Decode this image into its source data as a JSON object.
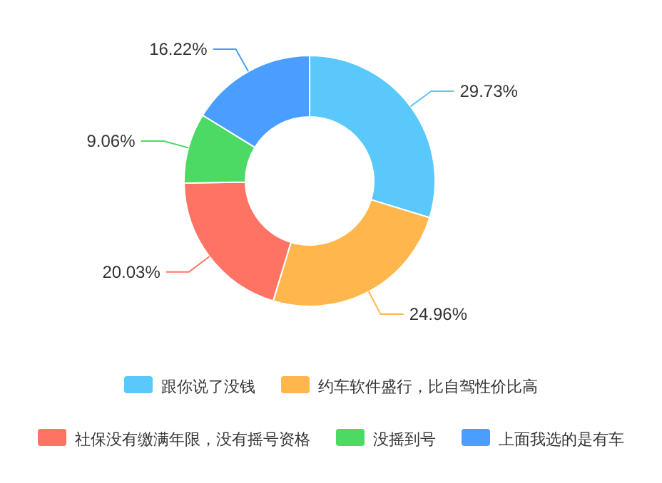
{
  "chart_data": {
    "type": "donut",
    "categories": [
      "跟你说了没钱",
      "约车软件盛行，比自驾性价比高",
      "社保没有缴满年限，没有摇号资格",
      "没摇到号",
      "上面我选的是有车"
    ],
    "values": [
      29.73,
      24.96,
      20.03,
      9.06,
      16.22
    ],
    "colors": [
      "#5ac8fa",
      "#ffb64d",
      "#ff7365",
      "#4cd964",
      "#4a9eff"
    ],
    "value_labels": [
      "29.73%",
      "24.96%",
      "20.03%",
      "9.06%",
      "16.22%"
    ],
    "legend": "bottom"
  }
}
